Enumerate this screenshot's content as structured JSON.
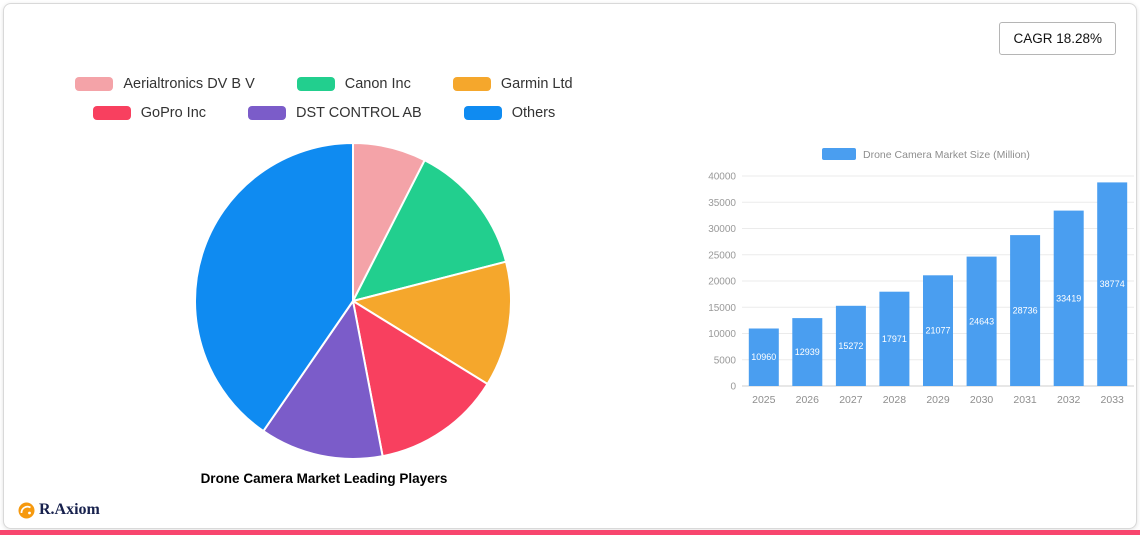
{
  "cagr_badge": "CAGR 18.28%",
  "logo": {
    "text": "R.Axiom",
    "icon_color": "#f6990e"
  },
  "accent_color": "#f8466e",
  "chart_data": [
    {
      "type": "pie",
      "title": "Drone Camera Market Leading Players",
      "legend_position": "top",
      "labels": [
        "Aerialtronics DV B V",
        "Canon Inc",
        "Garmin Ltd",
        "GoPro Inc",
        "DST CONTROL AB",
        "Others"
      ],
      "values": [
        7.5,
        13.5,
        12.8,
        13.2,
        12.6,
        40.4
      ],
      "colors": [
        "#f4a3a8",
        "#22cf8e",
        "#f5a72c",
        "#f8405f",
        "#7b5cc9",
        "#0f8bf1"
      ]
    },
    {
      "type": "bar",
      "series_name": "Drone Camera Market Size (Million)",
      "categories": [
        "2025",
        "2026",
        "2027",
        "2028",
        "2029",
        "2030",
        "2031",
        "2032",
        "2033"
      ],
      "values": [
        10960,
        12939,
        15272,
        17971,
        21077,
        24643,
        28736,
        33419,
        38774
      ],
      "ylabel_ticks": [
        0,
        5000,
        10000,
        15000,
        20000,
        25000,
        30000,
        35000,
        40000
      ],
      "ylim": [
        0,
        40000
      ],
      "ytick_step": 5000,
      "bar_color": "#4a9ef0",
      "grid": true,
      "legend_position": "top"
    }
  ]
}
